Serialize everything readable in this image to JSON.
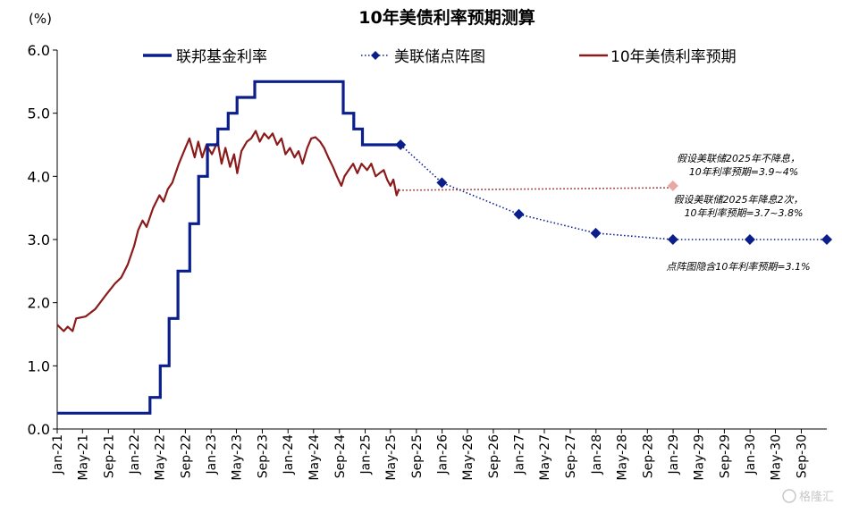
{
  "chart_data": {
    "type": "line",
    "title": "10年美债利率预期测算",
    "unit_label": "(%)",
    "ylim": [
      0,
      6
    ],
    "yticks": [
      "0.0",
      "1.0",
      "2.0",
      "3.0",
      "4.0",
      "5.0",
      "6.0"
    ],
    "xtick_labels": [
      "Jan-21",
      "May-21",
      "Sep-21",
      "Jan-22",
      "May-22",
      "Sep-22",
      "Jan-23",
      "May-23",
      "Sep-23",
      "Jan-24",
      "May-24",
      "Sep-24",
      "Jan-25",
      "May-25",
      "Sep-25",
      "Jan-26",
      "May-26",
      "Sep-26",
      "Jan-27",
      "May-27",
      "Sep-27",
      "Jan-28",
      "May-28",
      "Sep-28",
      "Jan-29",
      "May-29",
      "Sep-29",
      "Jan-30",
      "May-30",
      "Sep-30"
    ],
    "colors": {
      "fed": "#0a1e8c",
      "dots": "#0a1e8c",
      "yield": "#8b1a1a",
      "proj": "#e8a6a6"
    },
    "series": [
      {
        "name": "联邦基金利率",
        "style": "step",
        "points": [
          [
            "2021-01-01",
            0.25
          ],
          [
            "2022-03-17",
            0.5
          ],
          [
            "2022-05-05",
            1.0
          ],
          [
            "2022-06-16",
            1.75
          ],
          [
            "2022-07-28",
            2.5
          ],
          [
            "2022-09-22",
            3.25
          ],
          [
            "2022-11-03",
            4.0
          ],
          [
            "2022-12-15",
            4.5
          ],
          [
            "2023-02-02",
            4.75
          ],
          [
            "2023-03-23",
            5.0
          ],
          [
            "2023-05-04",
            5.25
          ],
          [
            "2023-07-27",
            5.5
          ],
          [
            "2024-09-19",
            5.0
          ],
          [
            "2024-11-08",
            4.75
          ],
          [
            "2024-12-19",
            4.5
          ],
          [
            "2025-06-18",
            4.5
          ]
        ]
      },
      {
        "name": "美联储点阵图",
        "style": "dotted-markers",
        "points": [
          [
            "2025-06-18",
            4.5
          ],
          [
            "2025-12-31",
            3.9
          ],
          [
            "2026-12-31",
            3.4
          ],
          [
            "2027-12-31",
            3.1
          ],
          [
            "2028-12-31",
            3.0
          ],
          [
            "2029-12-31",
            3.0
          ],
          [
            "2030-12-31",
            3.0
          ]
        ]
      },
      {
        "name": "10年美债利率预期",
        "style": "line",
        "points": [
          [
            "2021-01-01",
            1.65
          ],
          [
            "2021-02-01",
            1.55
          ],
          [
            "2021-02-20",
            1.62
          ],
          [
            "2021-03-15",
            1.55
          ],
          [
            "2021-04-01",
            1.75
          ],
          [
            "2021-05-15",
            1.78
          ],
          [
            "2021-07-01",
            1.9
          ],
          [
            "2021-08-15",
            2.1
          ],
          [
            "2021-10-01",
            2.3
          ],
          [
            "2021-11-01",
            2.4
          ],
          [
            "2021-12-01",
            2.6
          ],
          [
            "2022-01-01",
            2.9
          ],
          [
            "2022-01-20",
            3.15
          ],
          [
            "2022-02-10",
            3.3
          ],
          [
            "2022-03-01",
            3.2
          ],
          [
            "2022-04-01",
            3.5
          ],
          [
            "2022-05-01",
            3.7
          ],
          [
            "2022-05-20",
            3.6
          ],
          [
            "2022-06-10",
            3.8
          ],
          [
            "2022-07-01",
            3.9
          ],
          [
            "2022-08-01",
            4.2
          ],
          [
            "2022-09-01",
            4.45
          ],
          [
            "2022-09-20",
            4.6
          ],
          [
            "2022-10-15",
            4.3
          ],
          [
            "2022-11-01",
            4.55
          ],
          [
            "2022-11-20",
            4.3
          ],
          [
            "2022-12-10",
            4.5
          ],
          [
            "2023-01-05",
            4.35
          ],
          [
            "2023-02-01",
            4.55
          ],
          [
            "2023-02-20",
            4.2
          ],
          [
            "2023-03-10",
            4.45
          ],
          [
            "2023-04-01",
            4.15
          ],
          [
            "2023-04-20",
            4.35
          ],
          [
            "2023-05-05",
            4.05
          ],
          [
            "2023-05-25",
            4.4
          ],
          [
            "2023-06-20",
            4.55
          ],
          [
            "2023-07-10",
            4.6
          ],
          [
            "2023-08-01",
            4.72
          ],
          [
            "2023-08-20",
            4.55
          ],
          [
            "2023-09-10",
            4.68
          ],
          [
            "2023-10-01",
            4.6
          ],
          [
            "2023-10-20",
            4.68
          ],
          [
            "2023-11-10",
            4.5
          ],
          [
            "2023-12-01",
            4.6
          ],
          [
            "2023-12-20",
            4.35
          ],
          [
            "2024-01-10",
            4.45
          ],
          [
            "2024-02-01",
            4.3
          ],
          [
            "2024-02-20",
            4.4
          ],
          [
            "2024-03-10",
            4.2
          ],
          [
            "2024-04-01",
            4.45
          ],
          [
            "2024-04-20",
            4.6
          ],
          [
            "2024-05-10",
            4.62
          ],
          [
            "2024-06-01",
            4.55
          ],
          [
            "2024-06-20",
            4.45
          ],
          [
            "2024-07-10",
            4.3
          ],
          [
            "2024-08-01",
            4.15
          ],
          [
            "2024-08-20",
            4.0
          ],
          [
            "2024-09-10",
            3.85
          ],
          [
            "2024-09-25",
            4.0
          ],
          [
            "2024-10-15",
            4.1
          ],
          [
            "2024-11-05",
            4.2
          ],
          [
            "2024-11-25",
            4.05
          ],
          [
            "2024-12-15",
            4.2
          ],
          [
            "2025-01-10",
            4.1
          ],
          [
            "2025-01-30",
            4.2
          ],
          [
            "2025-02-20",
            4.0
          ],
          [
            "2025-03-10",
            4.05
          ],
          [
            "2025-03-30",
            4.1
          ],
          [
            "2025-04-15",
            3.95
          ],
          [
            "2025-05-01",
            3.85
          ],
          [
            "2025-05-15",
            3.95
          ],
          [
            "2025-05-30",
            3.7
          ],
          [
            "2025-06-10",
            3.8
          ]
        ]
      }
    ],
    "projection": {
      "from": [
        "2025-06-10",
        3.78
      ],
      "to": [
        "2028-12-31",
        3.82
      ],
      "marker": [
        "2028-12-31",
        3.85
      ]
    },
    "annotations": [
      {
        "line1": "假设美联储2025年不降息，",
        "line2": "10年利率预期=3.9~4%"
      },
      {
        "line1": "假设美联储2025年降息2次，",
        "line2": "10年利率预期=3.7~3.8%"
      },
      {
        "line1": "点阵图隐含10年利率预期=3.1%",
        "line2": ""
      }
    ]
  },
  "watermark": "格隆汇"
}
